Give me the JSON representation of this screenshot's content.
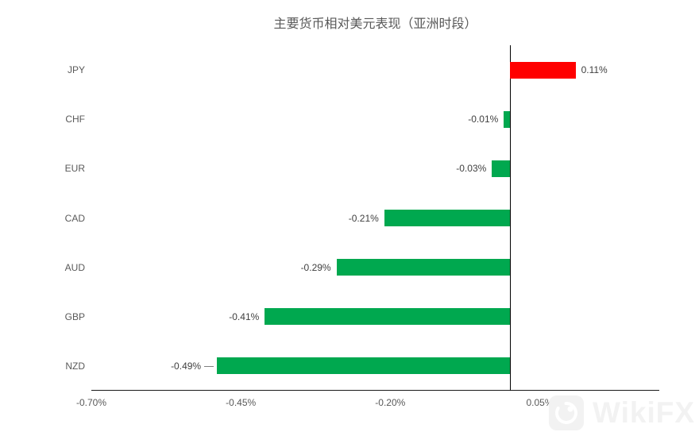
{
  "chart_data": {
    "type": "bar",
    "orientation": "horizontal",
    "title": "主要货币相对美元表现（亚洲时段）",
    "categories": [
      "JPY",
      "CHF",
      "EUR",
      "CAD",
      "AUD",
      "GBP",
      "NZD"
    ],
    "values": [
      0.11,
      -0.01,
      -0.03,
      -0.21,
      -0.29,
      -0.41,
      -0.49
    ],
    "value_labels": [
      "0.11%",
      "-0.01%",
      "-0.03%",
      "-0.21%",
      "-0.29%",
      "-0.41%",
      "-0.49%"
    ],
    "leader_lines": [
      false,
      false,
      false,
      false,
      false,
      false,
      true
    ],
    "unit": "%",
    "xlim": [
      -0.7,
      0.25
    ],
    "x_ticks": [
      {
        "value": -0.7,
        "label": "-0.70%"
      },
      {
        "value": -0.45,
        "label": "-0.45%"
      },
      {
        "value": -0.2,
        "label": "-0.20%"
      },
      {
        "value": 0.05,
        "label": "0.05%"
      }
    ],
    "grid": false,
    "legend": "none",
    "colors": {
      "positive_bar": "#ff0000",
      "negative_bar": "#00a84f",
      "zero_line": "#000000",
      "axis_line": "#1a1a1a",
      "title_text": "#595959",
      "tick_text": "#595959",
      "category_text": "#595959",
      "value_text": "#404040",
      "leader_line": "#7f7f7f"
    }
  },
  "watermark": {
    "text": "WikiFX",
    "logo_icon": "wikifx-logo",
    "color": "#f2f2f2"
  }
}
